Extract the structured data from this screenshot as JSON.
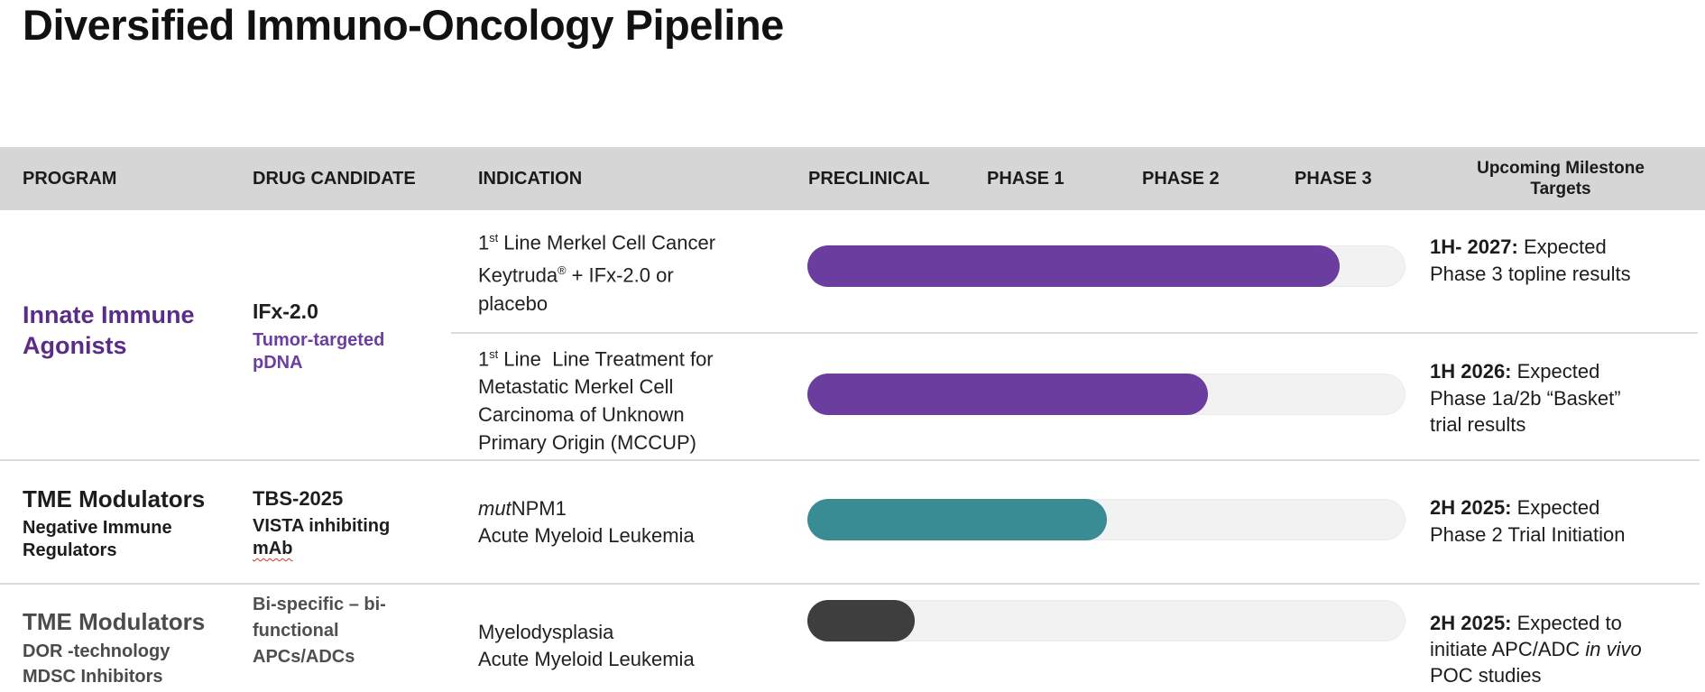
{
  "title": "Diversified Immuno-Oncology Pipeline",
  "colors": {
    "header_bg": "#d6d6d6",
    "purple_bar": "#6a3d9e",
    "teal_bar": "#3a8c94",
    "dark_bar": "#3e3e3e",
    "bar_track": "#f2f2f3",
    "purple_text": "#5b2c86",
    "spellcheck_red": "#d93025"
  },
  "header": {
    "col_program": "PROGRAM",
    "col_drug": "DRUG CANDIDATE",
    "col_indication": "INDICATION",
    "col_preclinical": "PRECLINICAL",
    "col_phase1": "PHASE 1",
    "col_phase2": "PHASE 2",
    "col_phase3": "PHASE 3",
    "col_milestone_line1": "Upcoming Milestone",
    "col_milestone_line2": "Targets"
  },
  "group1": {
    "program_line1": "Innate Immune",
    "program_line2": "Agonists",
    "drug_name": "IFx-2.0",
    "drug_sub1": "Tumor-targeted",
    "drug_sub2": "pDNA",
    "rowA": {
      "ind_l1_pre": "1",
      "ind_l1_sup": "st",
      "ind_l1_post": " Line Merkel Cell Cancer",
      "ind_l2_pre": "Keytruda",
      "ind_l2_sup": "®",
      "ind_l2_post": " + IFx-2.0 or",
      "ind_l3": "placebo",
      "bar_percent": 89,
      "ms_bold": "1H- 2027:",
      "ms_text": " Expected Phase 3 topline results"
    },
    "rowB": {
      "ind_l1_pre": "1",
      "ind_l1_sup": "st",
      "ind_l1_post": " Line  Line Treatment for",
      "ind_l2": "Metastatic Merkel Cell",
      "ind_l3": "Carcinoma of Unknown",
      "ind_l4": "Primary Origin (MCCUP)",
      "bar_percent": 67,
      "ms_bold": "1H 2026:",
      "ms_text": " Expected Phase 1a/2b “Basket” trial results"
    }
  },
  "row3": {
    "program_line1": "TME Modulators",
    "program_line2": "Negative Immune",
    "program_line3": "Regulators",
    "drug_name": "TBS-2025",
    "drug_sub1": "VISTA inhibiting",
    "drug_sub2": "mAb",
    "ind_l1_italic": "mut",
    "ind_l1_post": "NPM1",
    "ind_l2": "Acute Myeloid Leukemia",
    "bar_percent": 50,
    "ms_bold": "2H 2025:",
    "ms_text": " Expected Phase 2 Trial Initiation"
  },
  "row4": {
    "program_line1": "TME Modulators",
    "program_line2": "DOR -technology",
    "program_line3": "MDSC Inhibitors",
    "drug_l1": "Bi-specific – bi-",
    "drug_l2": "functional",
    "drug_l3": "APCs/ADCs",
    "ind_l1": "Myelodysplasia",
    "ind_l2": "Acute Myeloid Leukemia",
    "bar_percent": 18,
    "ms_bold": "2H 2025:",
    "ms_pre": " Expected to initiate APC/ADC ",
    "ms_italic": "in vivo",
    "ms_post": " POC studies"
  },
  "chart_data": {
    "type": "bar",
    "title": "Diversified Immuno-Oncology Pipeline",
    "phase_axis": [
      "PRECLINICAL",
      "PHASE 1",
      "PHASE 2",
      "PHASE 3"
    ],
    "series": [
      {
        "name": "IFx-2.0 — 1st Line Merkel Cell Cancer (Keytruda + IFx-2.0 or placebo)",
        "progress_percent": 89,
        "color": "#6a3d9e"
      },
      {
        "name": "IFx-2.0 — 1st Line Treatment for Metastatic Merkel Cell Carcinoma of Unknown Primary Origin (MCCUP)",
        "progress_percent": 67,
        "color": "#6a3d9e"
      },
      {
        "name": "TBS-2025 — mutNPM1 Acute Myeloid Leukemia",
        "progress_percent": 50,
        "color": "#3a8c94"
      },
      {
        "name": "Bi-specific bi-functional APCs/ADCs — Myelodysplasia / Acute Myeloid Leukemia",
        "progress_percent": 18,
        "color": "#3e3e3e"
      }
    ]
  }
}
